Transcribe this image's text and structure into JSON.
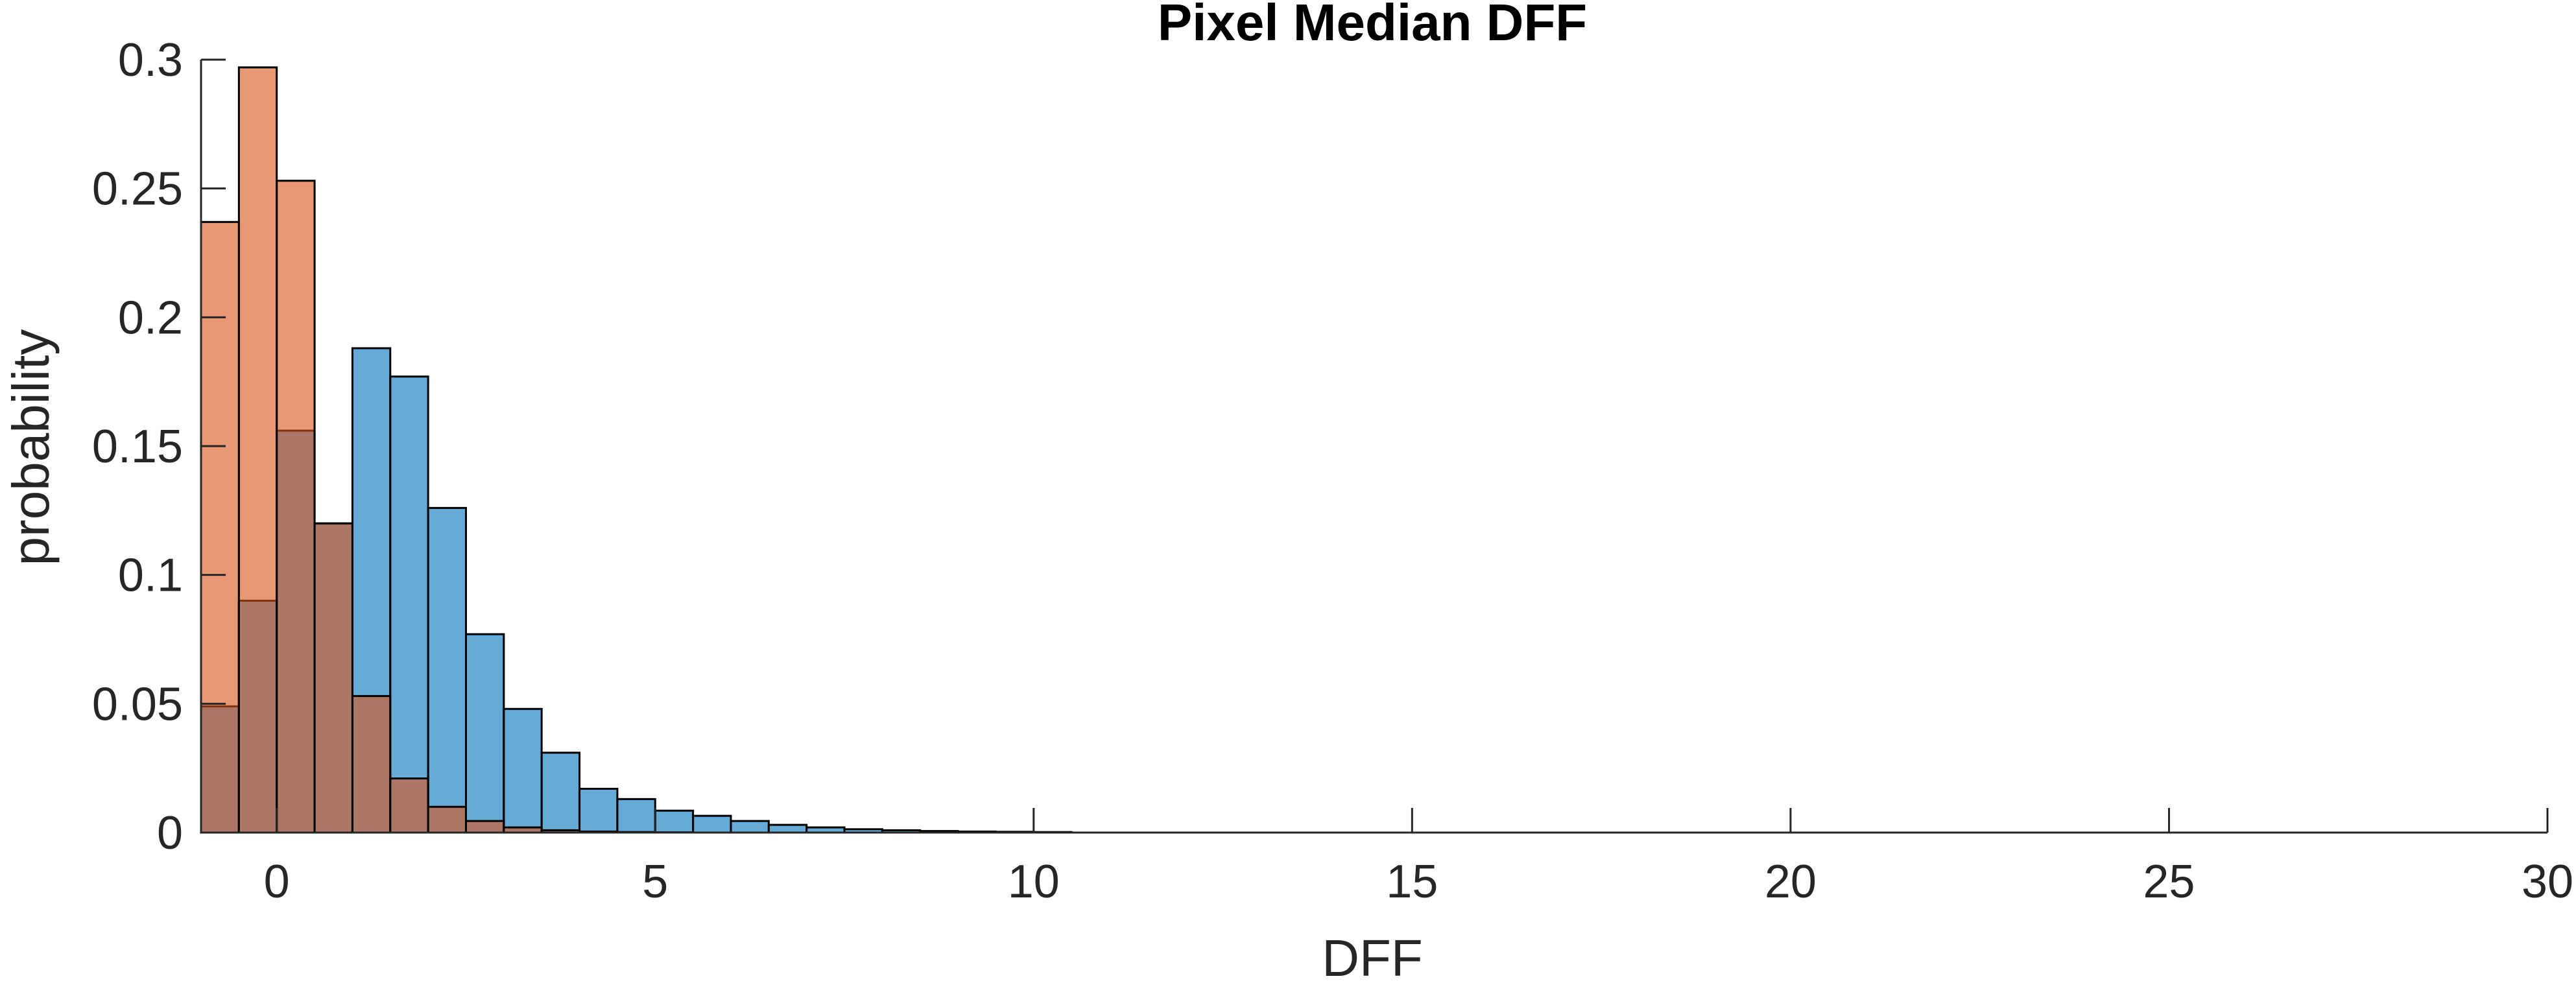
{
  "chart_data": {
    "type": "bar",
    "title": "Pixel Median DFF",
    "xlabel": "DFF",
    "ylabel": "probability",
    "xlim": [
      -1,
      30
    ],
    "ylim": [
      0,
      0.3
    ],
    "bin_width": 0.5,
    "x_ticks": [
      "0",
      "5",
      "10",
      "15",
      "20",
      "25",
      "30"
    ],
    "y_ticks": [
      "0",
      "0.05",
      "0.1",
      "0.15",
      "0.2",
      "0.25",
      "0.3"
    ],
    "grid": false,
    "legend": "none",
    "bin_left_edges": [
      -1.0,
      -0.5,
      0.0,
      0.5,
      1.0,
      1.5,
      2.0,
      2.5,
      3.0,
      3.5,
      4.0,
      4.5,
      5.0,
      5.5,
      6.0,
      6.5,
      7.0,
      7.5,
      8.0,
      8.5,
      9.0,
      9.5,
      10.0
    ],
    "series": [
      {
        "color": "#0072BD",
        "values": [
          0.049,
          0.09,
          0.156,
          0.12,
          0.188,
          0.177,
          0.126,
          0.077,
          0.048,
          0.031,
          0.017,
          0.013,
          0.0085,
          0.0065,
          0.0045,
          0.003,
          0.002,
          0.0013,
          0.0009,
          0.0006,
          0.0004,
          0.0003,
          0.0002
        ]
      },
      {
        "color": "#D95319",
        "values": [
          0.237,
          0.297,
          0.253,
          0.12,
          0.053,
          0.021,
          0.01,
          0.0045,
          0.002,
          0.0009,
          0.0004,
          0.0002,
          0.0001,
          0.0,
          0.0,
          0.0,
          0.0,
          0.0,
          0.0,
          0.0,
          0.0,
          0.0,
          0.0
        ]
      }
    ]
  }
}
